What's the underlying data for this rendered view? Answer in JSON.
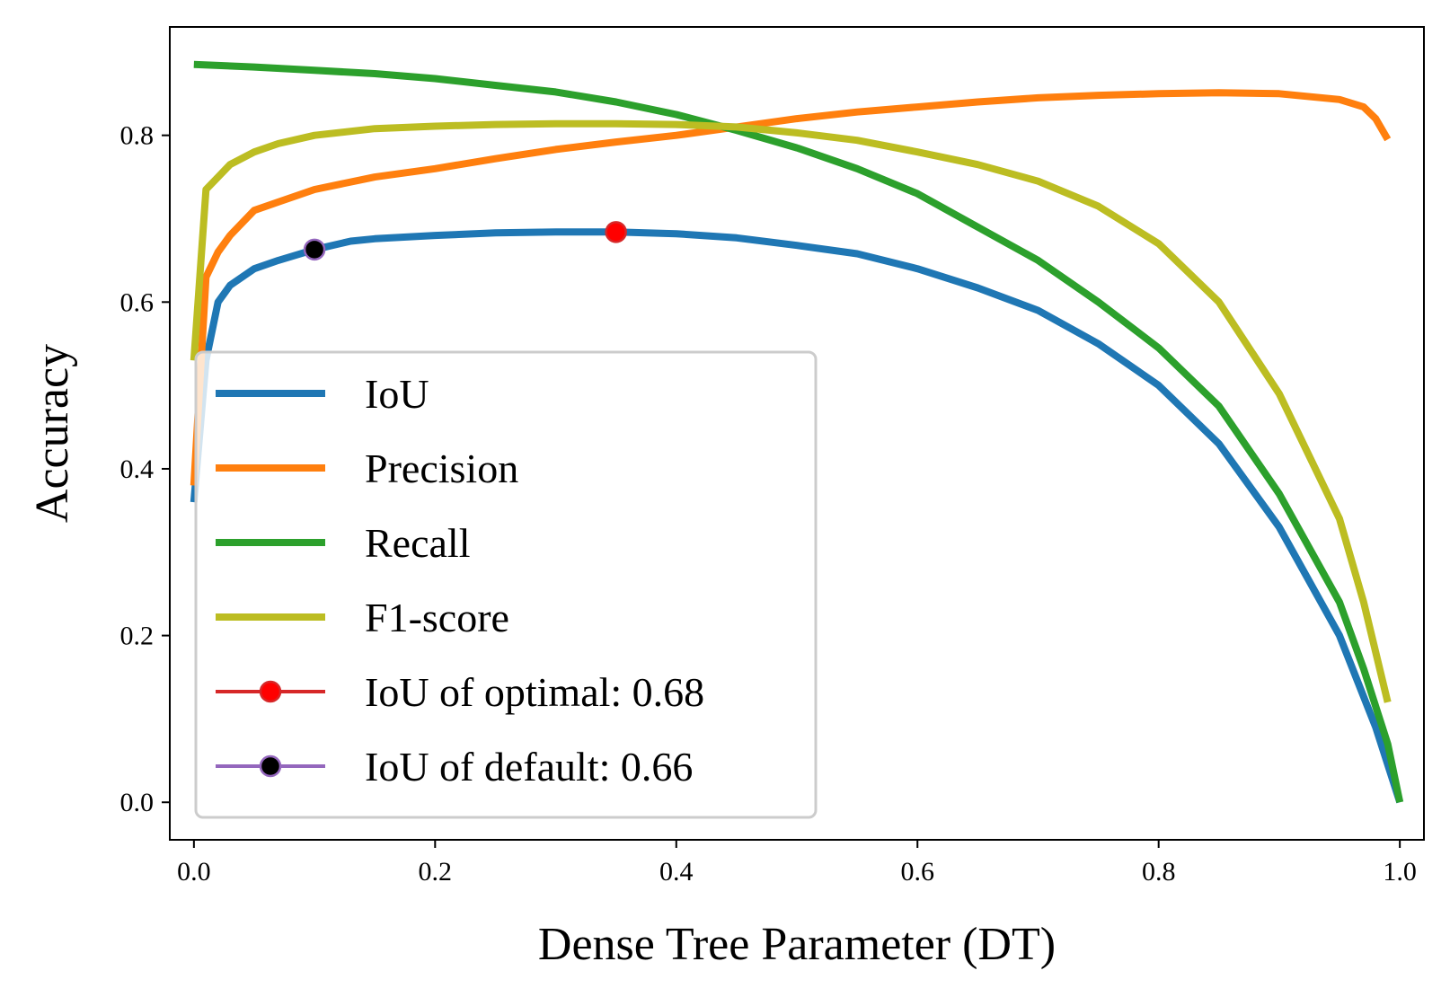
{
  "chart_data": {
    "type": "line",
    "xlabel": "Dense Tree Parameter (DT)",
    "ylabel": "Accuracy",
    "xlim": [
      -0.02,
      1.02
    ],
    "ylim": [
      -0.045,
      0.93
    ],
    "xticks": [
      0.0,
      0.2,
      0.4,
      0.6,
      0.8,
      1.0
    ],
    "xtick_labels": [
      "0.0",
      "0.2",
      "0.4",
      "0.6",
      "0.8",
      "1.0"
    ],
    "yticks": [
      0.0,
      0.2,
      0.4,
      0.6,
      0.8
    ],
    "ytick_labels": [
      "0.0",
      "0.2",
      "0.4",
      "0.6",
      "0.8"
    ],
    "grid": false,
    "legend_position": "lower-left",
    "series": [
      {
        "name": "IoU",
        "color": "#1f77b4",
        "x": [
          0.0,
          0.01,
          0.02,
          0.03,
          0.05,
          0.07,
          0.1,
          0.13,
          0.15,
          0.2,
          0.25,
          0.3,
          0.35,
          0.4,
          0.45,
          0.5,
          0.55,
          0.6,
          0.65,
          0.7,
          0.75,
          0.8,
          0.85,
          0.9,
          0.95,
          0.98,
          1.0
        ],
        "y": [
          0.36,
          0.53,
          0.6,
          0.62,
          0.64,
          0.65,
          0.663,
          0.673,
          0.676,
          0.68,
          0.683,
          0.684,
          0.684,
          0.682,
          0.677,
          0.668,
          0.658,
          0.64,
          0.617,
          0.59,
          0.55,
          0.5,
          0.43,
          0.33,
          0.2,
          0.09,
          0.0
        ]
      },
      {
        "name": "Precision",
        "color": "#ff7f0e",
        "x": [
          0.0,
          0.01,
          0.02,
          0.03,
          0.05,
          0.07,
          0.1,
          0.15,
          0.2,
          0.25,
          0.3,
          0.35,
          0.4,
          0.45,
          0.5,
          0.55,
          0.6,
          0.65,
          0.7,
          0.75,
          0.8,
          0.85,
          0.9,
          0.95,
          0.97,
          0.98,
          0.99
        ],
        "y": [
          0.38,
          0.63,
          0.66,
          0.68,
          0.71,
          0.72,
          0.735,
          0.75,
          0.76,
          0.772,
          0.783,
          0.792,
          0.8,
          0.81,
          0.82,
          0.828,
          0.834,
          0.84,
          0.845,
          0.848,
          0.85,
          0.851,
          0.85,
          0.843,
          0.834,
          0.82,
          0.795
        ]
      },
      {
        "name": "Recall",
        "color": "#2ca02c",
        "x": [
          0.0,
          0.05,
          0.1,
          0.15,
          0.2,
          0.25,
          0.3,
          0.35,
          0.4,
          0.45,
          0.5,
          0.55,
          0.6,
          0.65,
          0.7,
          0.75,
          0.8,
          0.85,
          0.9,
          0.95,
          0.97,
          0.99,
          1.0
        ],
        "y": [
          0.885,
          0.882,
          0.878,
          0.874,
          0.868,
          0.86,
          0.852,
          0.84,
          0.825,
          0.806,
          0.785,
          0.76,
          0.73,
          0.69,
          0.65,
          0.6,
          0.545,
          0.475,
          0.37,
          0.24,
          0.16,
          0.07,
          0.0
        ]
      },
      {
        "name": "F1-score",
        "color": "#bcbd22",
        "x": [
          0.0,
          0.01,
          0.02,
          0.03,
          0.05,
          0.07,
          0.1,
          0.15,
          0.2,
          0.25,
          0.3,
          0.35,
          0.4,
          0.45,
          0.5,
          0.55,
          0.6,
          0.65,
          0.7,
          0.75,
          0.8,
          0.85,
          0.9,
          0.95,
          0.97,
          0.99
        ],
        "y": [
          0.53,
          0.735,
          0.75,
          0.765,
          0.78,
          0.79,
          0.8,
          0.808,
          0.811,
          0.813,
          0.814,
          0.814,
          0.813,
          0.81,
          0.803,
          0.794,
          0.78,
          0.765,
          0.745,
          0.715,
          0.67,
          0.6,
          0.49,
          0.34,
          0.24,
          0.12
        ]
      }
    ],
    "markers": [
      {
        "name": "IoU of optimal: 0.68",
        "x": 0.35,
        "y": 0.684,
        "line_color": "#d62728",
        "face_color": "#ff0000"
      },
      {
        "name": "IoU of default: 0.66",
        "x": 0.1,
        "y": 0.663,
        "line_color": "#9467bd",
        "face_color": "#000000"
      }
    ]
  }
}
